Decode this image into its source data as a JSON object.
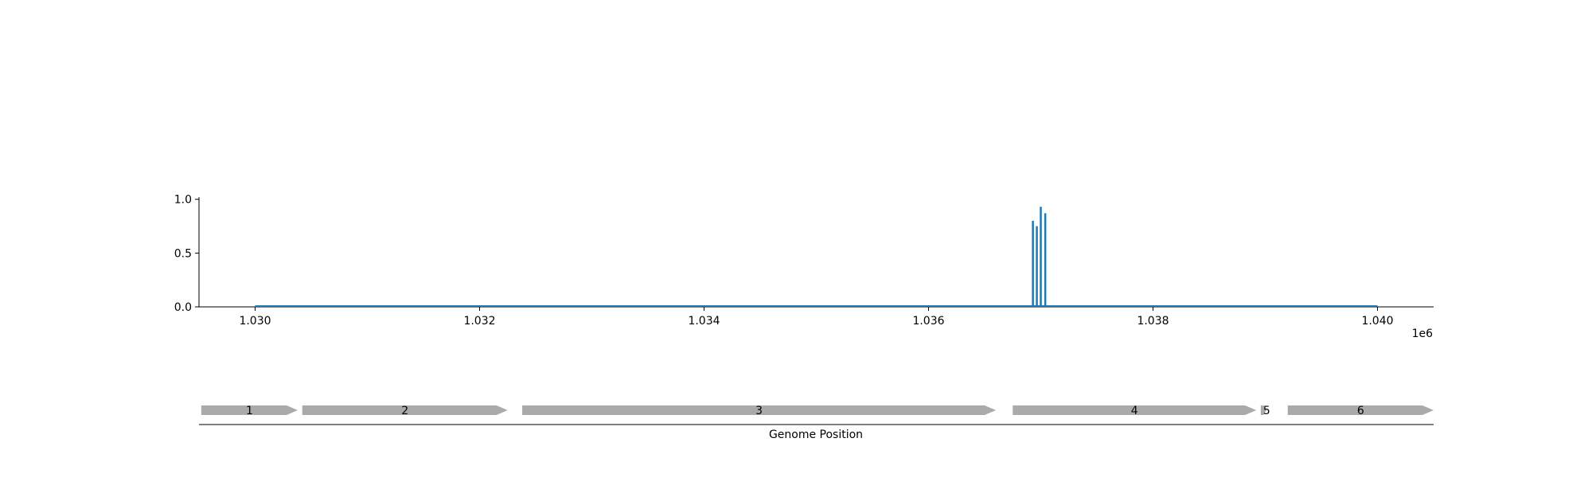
{
  "chart_data": [
    {
      "type": "bar",
      "xlim": [
        1029500,
        1040500
      ],
      "ylim": [
        0,
        1.02
      ],
      "x_ticks": [
        1030000,
        1032000,
        1034000,
        1036000,
        1038000,
        1040000
      ],
      "x_tick_labels": [
        "1.030",
        "1.032",
        "1.034",
        "1.036",
        "1.038",
        "1.040"
      ],
      "y_ticks": [
        0.0,
        0.5,
        1.0
      ],
      "y_tick_labels": [
        "0.0",
        "0.5",
        "1.0"
      ],
      "x_offset_label": "1e6",
      "baseline": {
        "x_start": 1030000,
        "x_end": 1040000,
        "y": 0.0
      },
      "points": [
        {
          "x": 1036930,
          "y": 0.8
        },
        {
          "x": 1036965,
          "y": 0.75
        },
        {
          "x": 1037000,
          "y": 0.93
        },
        {
          "x": 1037040,
          "y": 0.87
        }
      ],
      "color": "#1f77b4"
    },
    {
      "type": "gene-track",
      "xlabel": "Genome Position",
      "xlim": [
        1029500,
        1040500
      ],
      "color": "#aaaaaa",
      "genes": [
        {
          "label": "1",
          "start": 1029520,
          "end": 1030380
        },
        {
          "label": "2",
          "start": 1030420,
          "end": 1032250
        },
        {
          "label": "3",
          "start": 1032380,
          "end": 1036600
        },
        {
          "label": "4",
          "start": 1036750,
          "end": 1038920
        },
        {
          "label": "5",
          "start": 1038960,
          "end": 1039010
        },
        {
          "label": "6",
          "start": 1039200,
          "end": 1040500
        }
      ]
    }
  ]
}
